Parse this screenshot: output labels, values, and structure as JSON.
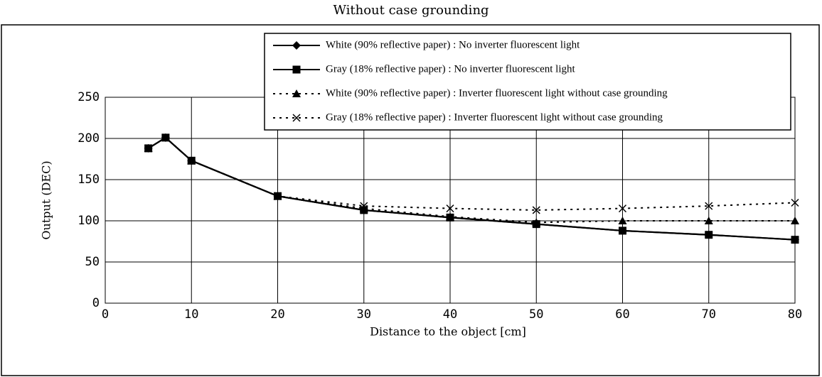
{
  "chart_data": {
    "type": "line",
    "title": "Without case grounding",
    "xlabel": "Distance to the object [cm]",
    "ylabel": "Output (DEC)",
    "xlim": [
      0,
      80
    ],
    "xticks": [
      0,
      10,
      20,
      30,
      40,
      50,
      60,
      70,
      80
    ],
    "ylim": [
      0,
      250
    ],
    "yticks": [
      0,
      50,
      100,
      150,
      200,
      250
    ],
    "grid": true,
    "legend": "top-right",
    "x": [
      5,
      7,
      10,
      20,
      30,
      40,
      50,
      60,
      70,
      80
    ],
    "series": [
      {
        "name": "White (90% reflective paper) : No inverter fluorescent light",
        "color": "#000000",
        "marker": "diamond",
        "dash": "solid",
        "values": [
          188,
          201,
          173,
          130,
          113,
          104,
          96,
          88,
          83,
          77
        ]
      },
      {
        "name": "Gray (18% reflective paper) : No inverter fluorescent light",
        "color": "#000000",
        "marker": "square",
        "dash": "solid",
        "values": [
          188,
          201,
          173,
          130,
          113,
          104,
          96,
          88,
          83,
          77
        ]
      },
      {
        "name": "White (90% reflective paper) : Inverter fluorescent light without case grounding",
        "color": "#000000",
        "marker": "triangle",
        "dash": "dotted",
        "values": [
          188,
          201,
          173,
          130,
          115,
          105,
          98,
          100,
          100,
          100
        ]
      },
      {
        "name": "Gray (18% reflective paper) : Inverter fluorescent light without case grounding",
        "color": "#000000",
        "marker": "x",
        "dash": "dotted",
        "values": [
          188,
          201,
          173,
          130,
          118,
          115,
          113,
          115,
          118,
          122
        ]
      }
    ]
  }
}
